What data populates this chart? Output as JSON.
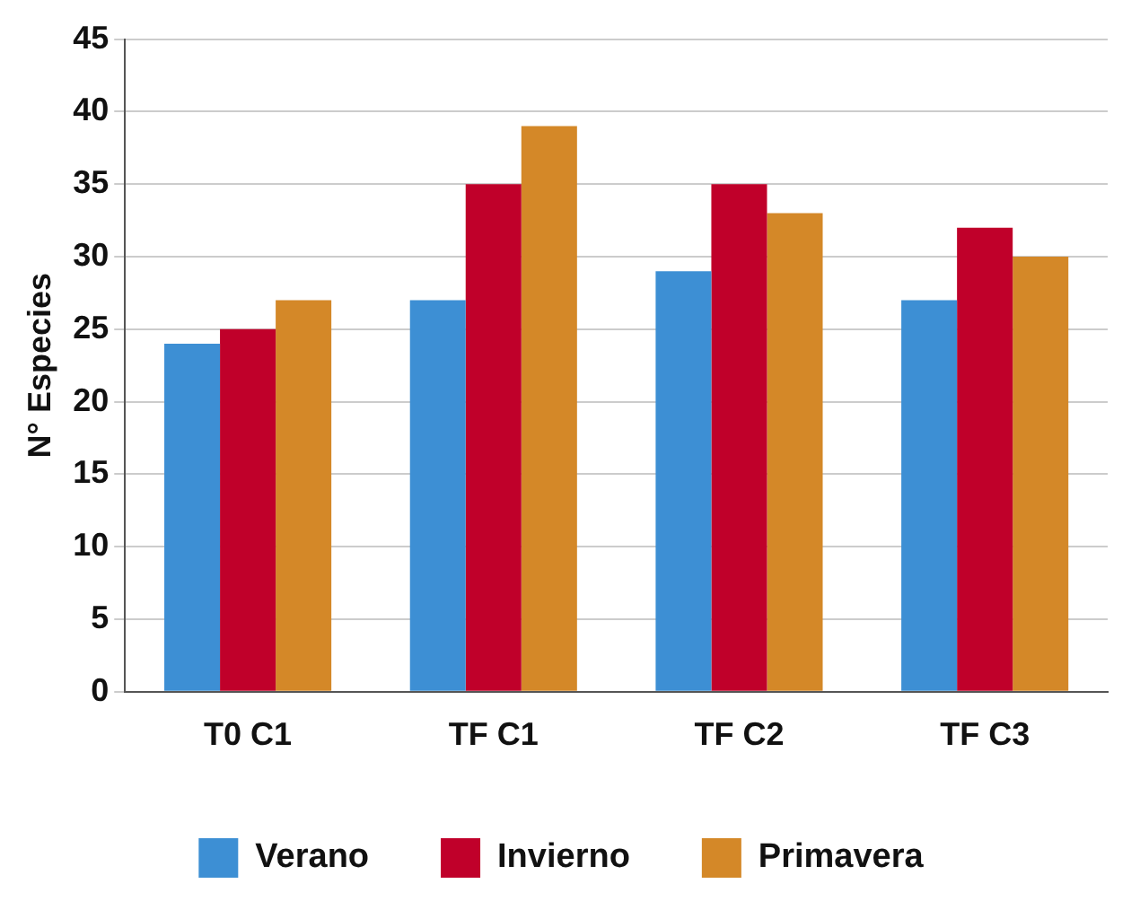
{
  "chart_data": {
    "type": "bar",
    "ylabel": "N° Especies",
    "categories": [
      "T0 C1",
      "TF C1",
      "TF C2",
      "TF C3"
    ],
    "series": [
      {
        "name": "Verano",
        "color": "#3d8fd4",
        "values": [
          24,
          27,
          29,
          27
        ]
      },
      {
        "name": "Invierno",
        "color": "#c0002a",
        "values": [
          25,
          35,
          35,
          32
        ]
      },
      {
        "name": "Primavera",
        "color": "#d48828",
        "values": [
          27,
          39,
          33,
          30
        ]
      }
    ],
    "ylim": [
      0,
      45
    ],
    "yticks": [
      0,
      5,
      10,
      15,
      20,
      25,
      30,
      35,
      40,
      45
    ],
    "grid": "y",
    "legend": "bottom"
  }
}
